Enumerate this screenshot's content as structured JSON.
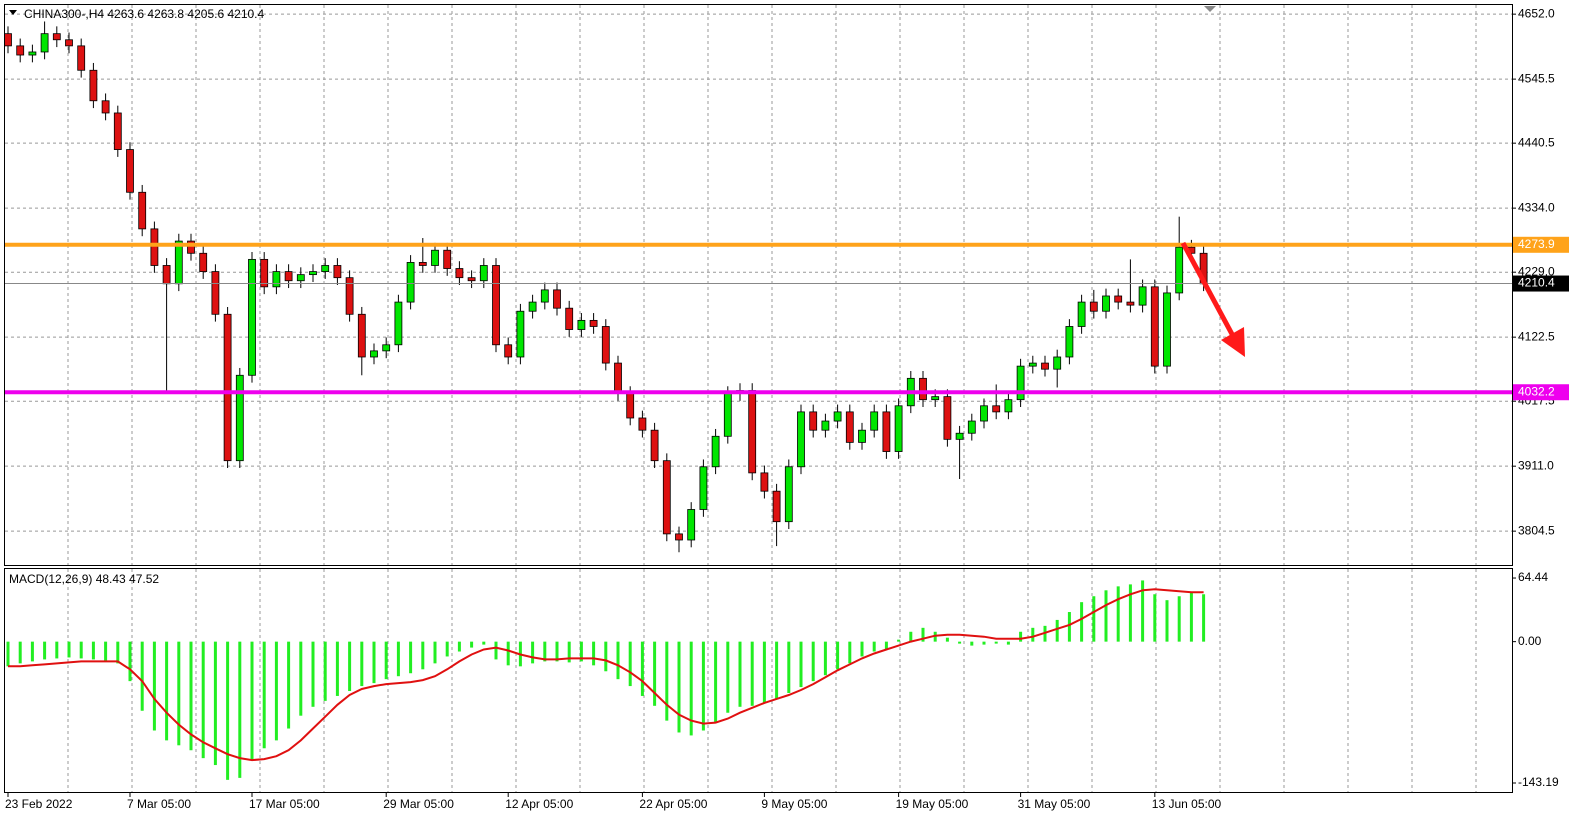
{
  "chart_data": [
    {
      "type": "candlestick",
      "title": "CHINA300-,H4  4263.6 4263.8 4205.6 4210.4",
      "categories": [
        "23 Feb 2022",
        null,
        null,
        null,
        null,
        null,
        null,
        null,
        null,
        null,
        "7 Mar 05:00",
        null,
        null,
        null,
        null,
        null,
        null,
        null,
        null,
        null,
        "17 Mar 05:00",
        null,
        null,
        null,
        null,
        null,
        null,
        null,
        null,
        null,
        null,
        "29 Mar 05:00",
        null,
        null,
        null,
        null,
        null,
        null,
        null,
        null,
        null,
        "12 Apr 05:00",
        null,
        null,
        null,
        null,
        null,
        null,
        null,
        null,
        null,
        null,
        "22 Apr 05:00",
        null,
        null,
        null,
        null,
        null,
        null,
        null,
        null,
        null,
        "9 May 05:00",
        null,
        null,
        null,
        null,
        null,
        null,
        null,
        null,
        null,
        null,
        "19 May 05:00",
        null,
        null,
        null,
        null,
        null,
        null,
        null,
        null,
        null,
        "31 May 05:00",
        null,
        null,
        null,
        null,
        null,
        null,
        null,
        null,
        null,
        null,
        "13 Jun 05:00",
        null,
        null,
        null,
        null
      ],
      "open": [
        4620,
        4600,
        4585,
        4590,
        4620,
        4610,
        4600,
        4560,
        4510,
        4490,
        4430,
        4360,
        4300,
        4240,
        4210,
        4280,
        4260,
        4230,
        4160,
        3920,
        4060,
        4250,
        4205,
        4230,
        4215,
        4225,
        4230,
        4240,
        4220,
        4160,
        4090,
        4100,
        4110,
        4180,
        4245,
        4240,
        4265,
        4235,
        4220,
        4215,
        4240,
        4110,
        4090,
        4165,
        4180,
        4200,
        4170,
        4135,
        4150,
        4140,
        4080,
        4030,
        3990,
        3970,
        3920,
        3800,
        3790,
        3840,
        3910,
        3960,
        4030,
        4035,
        3900,
        3870,
        3820,
        3910,
        4000,
        3970,
        3985,
        4000,
        3950,
        3970,
        4000,
        3935,
        4010,
        4055,
        4020,
        4025,
        3955,
        3965,
        3985,
        4010,
        4000,
        4020,
        4075,
        4080,
        4070,
        4090,
        4140,
        4180,
        4165,
        4190,
        4180,
        4175,
        4205,
        4075,
        4195,
        4270,
        4260
      ],
      "high": [
        4632,
        4612,
        4602,
        4640,
        4632,
        4622,
        4612,
        4572,
        4522,
        4502,
        4442,
        4372,
        4312,
        4252,
        4292,
        4292,
        4272,
        4242,
        4172,
        4072,
        4262,
        4262,
        4242,
        4242,
        4237,
        4242,
        4252,
        4252,
        4232,
        4172,
        4112,
        4122,
        4192,
        4257,
        4285,
        4277,
        4277,
        4247,
        4232,
        4252,
        4252,
        4122,
        4177,
        4192,
        4212,
        4212,
        4182,
        4162,
        4162,
        4152,
        4092,
        4042,
        4002,
        3982,
        3932,
        3812,
        3852,
        3922,
        3972,
        4042,
        4047,
        4047,
        3912,
        3882,
        3922,
        4012,
        4012,
        3997,
        4012,
        4012,
        3982,
        4012,
        4012,
        4022,
        4067,
        4067,
        4037,
        4037,
        3977,
        3997,
        4022,
        4045,
        4032,
        4087,
        4092,
        4092,
        4102,
        4152,
        4192,
        4200,
        4202,
        4202,
        4250,
        4217,
        4217,
        4207,
        4320,
        4282,
        4272
      ],
      "low": [
        4588,
        4573,
        4573,
        4578,
        4598,
        4588,
        4548,
        4498,
        4478,
        4418,
        4348,
        4288,
        4228,
        4030,
        4198,
        4248,
        4218,
        4148,
        3908,
        3908,
        4048,
        4193,
        4193,
        4203,
        4203,
        4213,
        4218,
        4208,
        4148,
        4060,
        4078,
        4088,
        4098,
        4168,
        4228,
        4228,
        4223,
        4208,
        4203,
        4203,
        4098,
        4078,
        4078,
        4153,
        4168,
        4158,
        4123,
        4123,
        4128,
        4068,
        4018,
        3978,
        3958,
        3908,
        3788,
        3770,
        3778,
        3828,
        3898,
        3948,
        4018,
        3888,
        3858,
        3780,
        3808,
        3898,
        3958,
        3958,
        3973,
        3938,
        3938,
        3958,
        3923,
        3923,
        3998,
        4008,
        4008,
        3943,
        3890,
        3953,
        3973,
        3988,
        3988,
        4008,
        4063,
        4058,
        4040,
        4078,
        4128,
        4153,
        4153,
        4168,
        4163,
        4163,
        4063,
        4063,
        4183,
        4248,
        4198
      ],
      "close": [
        4600,
        4585,
        4590,
        4620,
        4610,
        4600,
        4560,
        4510,
        4490,
        4430,
        4360,
        4300,
        4240,
        4210,
        4280,
        4260,
        4230,
        4160,
        3920,
        4060,
        4250,
        4205,
        4230,
        4215,
        4225,
        4230,
        4240,
        4220,
        4160,
        4090,
        4100,
        4110,
        4180,
        4245,
        4240,
        4265,
        4235,
        4220,
        4215,
        4240,
        4110,
        4090,
        4165,
        4180,
        4200,
        4170,
        4135,
        4150,
        4140,
        4080,
        4030,
        3990,
        3970,
        3920,
        3800,
        3790,
        3840,
        3910,
        3960,
        4030,
        4035,
        3900,
        3870,
        3820,
        3910,
        4000,
        3970,
        3985,
        4000,
        3950,
        3970,
        4000,
        3935,
        4010,
        4055,
        4020,
        4025,
        3955,
        3965,
        3985,
        4010,
        4000,
        4020,
        4075,
        4080,
        4070,
        4090,
        4140,
        4180,
        4165,
        4190,
        4180,
        4175,
        4205,
        4075,
        4195,
        4270,
        4260,
        4210
      ],
      "up_color": "#00e600",
      "down_color": "#dd1111",
      "ylim": [
        3749,
        4667
      ],
      "yticks": [
        {
          "value": 4652,
          "label": "4652.0"
        },
        {
          "value": 4545.5,
          "label": "4545.5"
        },
        {
          "value": 4440.5,
          "label": "4440.5"
        },
        {
          "value": 4334,
          "label": "4334.0"
        },
        {
          "value": 4229,
          "label": "4229.0"
        },
        {
          "value": 4122.5,
          "label": "4122.5"
        },
        {
          "value": 4017.5,
          "label": "4017.5"
        },
        {
          "value": 3911,
          "label": "3911.0"
        },
        {
          "value": 3804.5,
          "label": "3804.5"
        }
      ],
      "grid": true,
      "levels": [
        {
          "value": 4273.9,
          "color": "#ffa31a"
        },
        {
          "value": 4032.2,
          "color": "#ee00ee"
        }
      ],
      "bid": 4210.4
    },
    {
      "type": "macd",
      "title": "MACD(12,26,9) 48.43 47.52",
      "histogram": [
        -25,
        -22,
        -20,
        -18,
        -17,
        -16,
        -17,
        -18,
        -20,
        -22,
        -40,
        -70,
        -90,
        -100,
        -105,
        -110,
        -118,
        -125,
        -140,
        -138,
        -120,
        -108,
        -100,
        -88,
        -75,
        -66,
        -60,
        -55,
        -50,
        -45,
        -42,
        -38,
        -35,
        -32,
        -28,
        -22,
        -15,
        -10,
        -6,
        -3,
        -18,
        -24,
        -25,
        -22,
        -20,
        -20,
        -21,
        -20,
        -24,
        -30,
        -38,
        -45,
        -55,
        -65,
        -80,
        -92,
        -95,
        -90,
        -82,
        -72,
        -66,
        -65,
        -62,
        -58,
        -52,
        -46,
        -40,
        -34,
        -28,
        -22,
        -15,
        -10,
        -8,
        2,
        10,
        14,
        10,
        4,
        -2,
        -4,
        -3,
        -2,
        -3,
        10,
        14,
        16,
        22,
        30,
        40,
        46,
        52,
        56,
        58,
        62,
        48,
        42,
        46,
        50,
        48
      ],
      "signal": [
        -25,
        -25,
        -24,
        -23,
        -22,
        -21,
        -20,
        -20,
        -20,
        -20,
        -28,
        -40,
        -58,
        -72,
        -84,
        -94,
        -102,
        -108,
        -114,
        -118,
        -120,
        -119,
        -116,
        -110,
        -100,
        -88,
        -76,
        -64,
        -54,
        -48,
        -45,
        -43,
        -42,
        -41,
        -39,
        -35,
        -28,
        -20,
        -13,
        -8,
        -6,
        -9,
        -13,
        -16,
        -18,
        -18,
        -17,
        -17,
        -17,
        -19,
        -24,
        -31,
        -40,
        -52,
        -64,
        -74,
        -80,
        -83,
        -82,
        -78,
        -72,
        -67,
        -62,
        -58,
        -54,
        -49,
        -43,
        -36,
        -29,
        -23,
        -17,
        -12,
        -8,
        -4,
        0,
        3,
        6,
        7,
        7,
        6,
        5,
        3,
        3,
        3,
        5,
        9,
        13,
        17,
        23,
        30,
        37,
        43,
        48,
        52,
        53,
        52,
        51,
        50,
        50
      ],
      "histogram_color": "#22ee22",
      "signal_color": "#e01010",
      "ylim": [
        -152.3,
        74.6
      ],
      "yticks": [
        64.44,
        {
          "value": 0,
          "label": "0.00"
        },
        -143.19
      ]
    }
  ]
}
